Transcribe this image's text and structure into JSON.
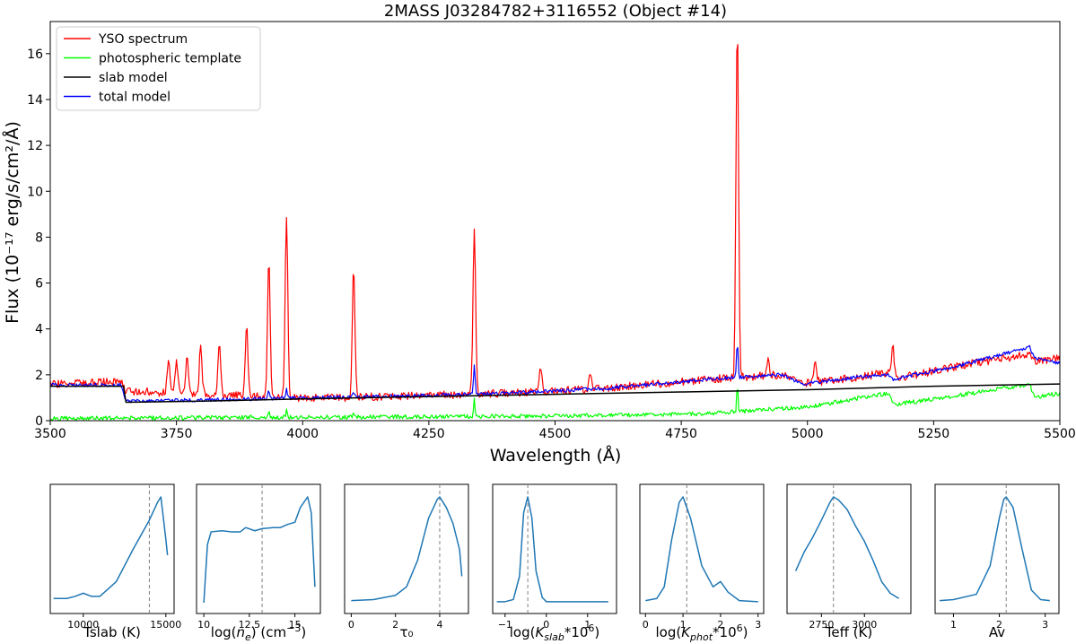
{
  "chart_data": [
    {
      "type": "line",
      "title": "2MASS J03284782+3116552 (Object #14)",
      "xlabel": "Wavelength (Å)",
      "ylabel": "Flux (10⁻¹⁷ erg/s/cm²/Å)",
      "xlim": [
        3500,
        5500
      ],
      "ylim": [
        0,
        17.4
      ],
      "xticks": [
        3500,
        3750,
        4000,
        4250,
        4500,
        4750,
        5000,
        5250,
        5500
      ],
      "yticks": [
        0,
        2,
        4,
        6,
        8,
        10,
        12,
        14,
        16
      ],
      "grid": false,
      "legend_position": "top-left",
      "series": [
        {
          "name": "YSO spectrum",
          "color": "#ff0000",
          "continuum": [
            [
              3500,
              1.6
            ],
            [
              3640,
              1.7
            ],
            [
              3650,
              1.3
            ],
            [
              3700,
              1.25
            ],
            [
              3800,
              1.15
            ],
            [
              3900,
              1.05
            ],
            [
              4000,
              1.0
            ],
            [
              4100,
              1.02
            ],
            [
              4250,
              1.1
            ],
            [
              4400,
              1.2
            ],
            [
              4600,
              1.4
            ],
            [
              4800,
              1.8
            ],
            [
              4950,
              2.0
            ],
            [
              4990,
              1.6
            ],
            [
              5100,
              1.9
            ],
            [
              5160,
              2.1
            ],
            [
              5170,
              1.8
            ],
            [
              5300,
              2.4
            ],
            [
              5440,
              2.9
            ],
            [
              5450,
              2.6
            ],
            [
              5500,
              2.7
            ]
          ],
          "lines": [
            [
              3734,
              2.7
            ],
            [
              3750,
              2.7
            ],
            [
              3771,
              2.7
            ],
            [
              3798,
              3.3
            ],
            [
              3835,
              3.4
            ],
            [
              3889,
              4.2
            ],
            [
              3933,
              7.0
            ],
            [
              3968,
              8.9
            ],
            [
              4101,
              6.7
            ],
            [
              4340,
              8.4
            ],
            [
              4471,
              2.4
            ],
            [
              4570,
              2.0
            ],
            [
              4861,
              17.4
            ],
            [
              4922,
              2.6
            ],
            [
              5016,
              2.6
            ],
            [
              5169,
              3.3
            ]
          ]
        },
        {
          "name": "photospheric template",
          "color": "#00ff00",
          "continuum": [
            [
              3500,
              0.1
            ],
            [
              4000,
              0.15
            ],
            [
              4500,
              0.2
            ],
            [
              4800,
              0.3
            ],
            [
              5000,
              0.6
            ],
            [
              5160,
              1.2
            ],
            [
              5170,
              0.7
            ],
            [
              5300,
              1.1
            ],
            [
              5440,
              1.6
            ],
            [
              5450,
              1.0
            ],
            [
              5500,
              1.2
            ]
          ],
          "lines": [
            [
              3933,
              0.4
            ],
            [
              3968,
              0.45
            ],
            [
              4101,
              0.4
            ],
            [
              4340,
              1.0
            ],
            [
              4861,
              1.7
            ]
          ]
        },
        {
          "name": "slab model",
          "color": "#000000",
          "points": [
            [
              3500,
              1.5
            ],
            [
              3645,
              1.5
            ],
            [
              3650,
              0.8
            ],
            [
              3800,
              0.85
            ],
            [
              4000,
              0.95
            ],
            [
              4250,
              1.05
            ],
            [
              4500,
              1.15
            ],
            [
              4750,
              1.25
            ],
            [
              5000,
              1.35
            ],
            [
              5250,
              1.5
            ],
            [
              5500,
              1.6
            ]
          ]
        },
        {
          "name": "total model",
          "color": "#0000ff",
          "continuum": [
            [
              3500,
              1.55
            ],
            [
              3640,
              1.55
            ],
            [
              3650,
              0.85
            ],
            [
              3800,
              0.9
            ],
            [
              3900,
              0.95
            ],
            [
              4000,
              1.0
            ],
            [
              4100,
              1.02
            ],
            [
              4250,
              1.1
            ],
            [
              4400,
              1.2
            ],
            [
              4600,
              1.4
            ],
            [
              4800,
              1.8
            ],
            [
              4950,
              2.0
            ],
            [
              4990,
              1.6
            ],
            [
              5100,
              1.9
            ],
            [
              5160,
              2.0
            ],
            [
              5170,
              1.8
            ],
            [
              5300,
              2.4
            ],
            [
              5440,
              3.2
            ],
            [
              5450,
              2.7
            ],
            [
              5500,
              2.5
            ]
          ],
          "lines": [
            [
              3933,
              1.3
            ],
            [
              3968,
              1.4
            ],
            [
              4101,
              1.3
            ],
            [
              4340,
              2.5
            ],
            [
              4861,
              3.4
            ]
          ]
        }
      ]
    },
    {
      "type": "line",
      "xlabel": "Tslab (K)",
      "xlim": [
        8000,
        15500
      ],
      "xticks": [
        10000,
        15000
      ],
      "marker": 14000,
      "points": [
        [
          8200,
          0.04
        ],
        [
          9000,
          0.04
        ],
        [
          9500,
          0.06
        ],
        [
          10000,
          0.09
        ],
        [
          10500,
          0.06
        ],
        [
          11000,
          0.06
        ],
        [
          12000,
          0.2
        ],
        [
          13000,
          0.5
        ],
        [
          14000,
          0.78
        ],
        [
          14500,
          0.95
        ],
        [
          14700,
          1.0
        ],
        [
          15000,
          0.6
        ],
        [
          15100,
          0.45
        ]
      ]
    },
    {
      "type": "line",
      "xlabel": "log(n_e) (cm^-3)",
      "xlim": [
        9.6,
        16.4
      ],
      "xticks": [
        10.0,
        12.5,
        15.0
      ],
      "marker": 13.2,
      "points": [
        [
          10.0,
          0.0
        ],
        [
          10.2,
          0.55
        ],
        [
          10.4,
          0.67
        ],
        [
          11.0,
          0.68
        ],
        [
          11.5,
          0.67
        ],
        [
          12.0,
          0.67
        ],
        [
          12.3,
          0.71
        ],
        [
          12.8,
          0.68
        ],
        [
          13.2,
          0.7
        ],
        [
          13.8,
          0.71
        ],
        [
          14.2,
          0.71
        ],
        [
          14.6,
          0.74
        ],
        [
          15.0,
          0.76
        ],
        [
          15.3,
          0.9
        ],
        [
          15.7,
          1.0
        ],
        [
          15.9,
          0.85
        ],
        [
          16.1,
          0.15
        ]
      ]
    },
    {
      "type": "line",
      "xlabel": "τ₀",
      "xlim": [
        -0.3,
        5.3
      ],
      "xticks": [
        0,
        2,
        4
      ],
      "marker": 4.0,
      "points": [
        [
          0.0,
          0.02
        ],
        [
          1.0,
          0.03
        ],
        [
          2.0,
          0.07
        ],
        [
          2.5,
          0.15
        ],
        [
          3.0,
          0.4
        ],
        [
          3.5,
          0.8
        ],
        [
          3.9,
          0.98
        ],
        [
          4.0,
          1.0
        ],
        [
          4.3,
          0.9
        ],
        [
          4.6,
          0.75
        ],
        [
          4.9,
          0.5
        ],
        [
          5.0,
          0.25
        ]
      ]
    },
    {
      "type": "line",
      "xlabel": "log(K_slab*10^6)",
      "xlim": [
        -1.3,
        1.7
      ],
      "xticks": [
        -1,
        0,
        1
      ],
      "marker": -0.45,
      "points": [
        [
          -1.2,
          0.01
        ],
        [
          -1.0,
          0.01
        ],
        [
          -0.8,
          0.03
        ],
        [
          -0.65,
          0.25
        ],
        [
          -0.55,
          0.85
        ],
        [
          -0.45,
          1.0
        ],
        [
          -0.35,
          0.8
        ],
        [
          -0.25,
          0.3
        ],
        [
          -0.1,
          0.05
        ],
        [
          0.0,
          0.01
        ],
        [
          1.0,
          0.01
        ],
        [
          1.5,
          0.01
        ]
      ]
    },
    {
      "type": "line",
      "xlabel": "log(K_phot*10^6)",
      "xlim": [
        -0.15,
        3.15
      ],
      "xticks": [
        0,
        1,
        2,
        3
      ],
      "marker": 1.1,
      "points": [
        [
          0.0,
          0.02
        ],
        [
          0.3,
          0.04
        ],
        [
          0.5,
          0.15
        ],
        [
          0.7,
          0.6
        ],
        [
          0.9,
          0.95
        ],
        [
          1.0,
          1.0
        ],
        [
          1.2,
          0.8
        ],
        [
          1.5,
          0.35
        ],
        [
          1.8,
          0.15
        ],
        [
          2.0,
          0.2
        ],
        [
          2.2,
          0.1
        ],
        [
          2.5,
          0.02
        ],
        [
          3.0,
          0.01
        ]
      ]
    },
    {
      "type": "line",
      "xlabel": "Teff (K)",
      "xlim": [
        2550,
        3270
      ],
      "xticks": [
        2750,
        3000
      ],
      "marker": 2820,
      "points": [
        [
          2600,
          0.3
        ],
        [
          2650,
          0.48
        ],
        [
          2700,
          0.62
        ],
        [
          2750,
          0.78
        ],
        [
          2800,
          0.95
        ],
        [
          2820,
          1.0
        ],
        [
          2850,
          0.97
        ],
        [
          2900,
          0.88
        ],
        [
          2950,
          0.72
        ],
        [
          3000,
          0.58
        ],
        [
          3050,
          0.4
        ],
        [
          3100,
          0.2
        ],
        [
          3150,
          0.09
        ],
        [
          3200,
          0.04
        ]
      ]
    },
    {
      "type": "line",
      "xlabel": "Av",
      "xlim": [
        0.6,
        3.3
      ],
      "xticks": [
        1,
        2,
        3
      ],
      "marker": 2.15,
      "points": [
        [
          0.7,
          0.02
        ],
        [
          1.0,
          0.03
        ],
        [
          1.5,
          0.08
        ],
        [
          1.8,
          0.35
        ],
        [
          2.0,
          0.8
        ],
        [
          2.1,
          0.98
        ],
        [
          2.15,
          1.0
        ],
        [
          2.3,
          0.9
        ],
        [
          2.5,
          0.5
        ],
        [
          2.7,
          0.12
        ],
        [
          2.9,
          0.03
        ],
        [
          3.1,
          0.02
        ]
      ]
    }
  ]
}
